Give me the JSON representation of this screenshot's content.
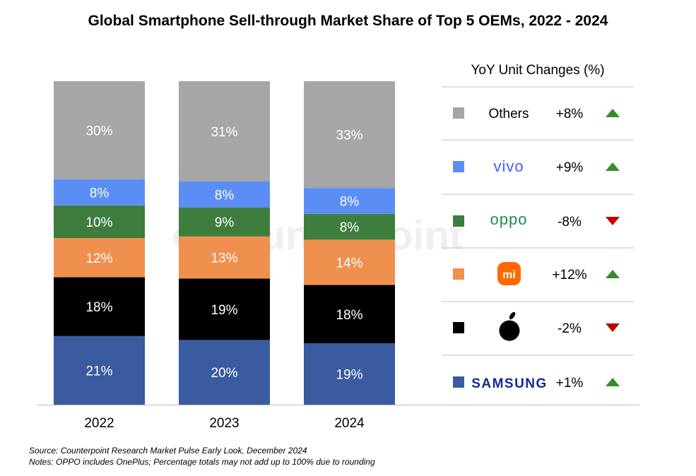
{
  "chart_data": {
    "type": "bar",
    "stacked": true,
    "title": "Global Smartphone Sell-through Market Share of Top 5 OEMs, 2022 - 2024",
    "categories": [
      "2022",
      "2023",
      "2024"
    ],
    "ylim": [
      0,
      100
    ],
    "grid": false,
    "series": [
      {
        "name": "SAMSUNG",
        "color": "#3a5ba0",
        "values": [
          21,
          20,
          19
        ],
        "yoy": "+1%",
        "trend": "up"
      },
      {
        "name": "Apple",
        "color": "#000000",
        "values": [
          18,
          19,
          18
        ],
        "yoy": "-2%",
        "trend": "down"
      },
      {
        "name": "Xiaomi",
        "color": "#f0904f",
        "values": [
          12,
          13,
          14
        ],
        "yoy": "+12%",
        "trend": "up"
      },
      {
        "name": "OPPO",
        "color": "#3f7d3f",
        "values": [
          10,
          9,
          8
        ],
        "yoy": "-8%",
        "trend": "down"
      },
      {
        "name": "vivo",
        "color": "#5b8ef5",
        "values": [
          8,
          8,
          8
        ],
        "yoy": "+9%",
        "trend": "up"
      },
      {
        "name": "Others",
        "color": "#a6a6a6",
        "values": [
          30,
          31,
          33
        ],
        "yoy": "+8%",
        "trend": "up"
      }
    ],
    "legend_placement": "right",
    "legend_title": "YoY Unit Changes (%)",
    "trend_colors": {
      "up": "#3a8a2e",
      "down": "#c00000"
    }
  },
  "watermark": "Counterpoint",
  "footer": {
    "source": "Source: Counterpoint Research Market Pulse Early Look, December 2024",
    "notes": "Notes: OPPO includes OnePlus; Percentage totals may not add up to 100% due to rounding"
  }
}
